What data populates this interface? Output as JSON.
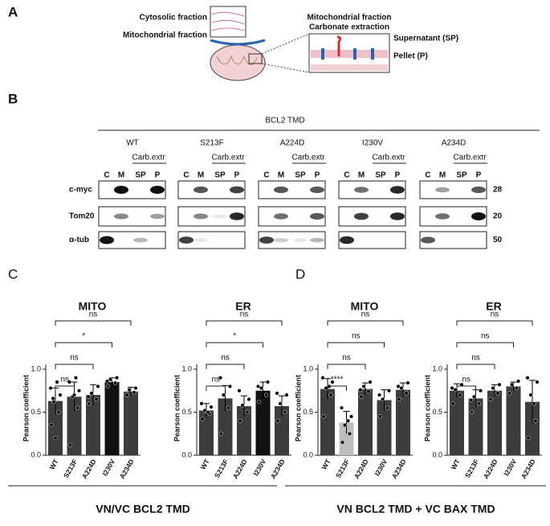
{
  "panel_a": {
    "label": "A",
    "cytosolic": "Cytosolic fraction",
    "mito": "Mitochondrial fraction",
    "box_title": [
      "Mitochondrial fraction",
      "Carbonate extraction"
    ],
    "supernatant": "Supernatant (SP)",
    "pellet": "Pellet (P)"
  },
  "panel_b": {
    "label": "B",
    "header": "BCL2 TMD",
    "groups": [
      "WT",
      "S213F",
      "A224D",
      "I230V",
      "A234D"
    ],
    "carb": "Carb.extr",
    "lanes": [
      "C",
      "M",
      "SP",
      "P"
    ],
    "rows": [
      "c-myc",
      "Tom20",
      "α-tub"
    ],
    "sizes": [
      28,
      20,
      50
    ]
  },
  "panel_c": {
    "label": "C",
    "caption": "VN/VC BCL2 TMD"
  },
  "panel_d": {
    "label": "D",
    "caption": "VN BCL2 TMD + VC BAX TMD"
  },
  "chart_data": [
    {
      "type": "bar",
      "title": "MITO",
      "ylabel": "Pearson coefficient",
      "categories": [
        "WT",
        "S213F",
        "A224D",
        "I230V",
        "A234D"
      ],
      "values": [
        0.63,
        0.68,
        0.7,
        0.85,
        0.74
      ],
      "errors": [
        0.15,
        0.17,
        0.12,
        0.05,
        0.05
      ],
      "bar_colors": [
        "#3d3d3d",
        "#3d3d3d",
        "#3d3d3d",
        "#111111",
        "#3d3d3d"
      ],
      "points": [
        [
          0.35,
          0.5,
          0.62,
          0.7,
          0.78,
          0.85,
          0.2,
          0.66
        ],
        [
          0.12,
          0.55,
          0.68,
          0.75,
          0.85,
          0.9,
          0.7
        ],
        [
          0.6,
          0.65,
          0.72,
          0.8,
          0.68
        ],
        [
          0.8,
          0.84,
          0.88,
          0.9,
          0.86
        ],
        [
          0.7,
          0.73,
          0.76,
          0.78
        ]
      ],
      "ylim": [
        0,
        1
      ],
      "yticks": [
        {
          "value": 0,
          "label": "0.0"
        },
        {
          "value": 0.5,
          "label": "0.5"
        },
        {
          "value": 1,
          "label": "1.0"
        }
      ],
      "significance": [
        "ns",
        "ns",
        "*",
        "ns"
      ]
    },
    {
      "type": "bar",
      "title": "ER",
      "ylabel": "Pearson coefficient",
      "categories": [
        "WT",
        "S213F",
        "A224D",
        "I230V",
        "A234D"
      ],
      "values": [
        0.52,
        0.66,
        0.57,
        0.75,
        0.57
      ],
      "errors": [
        0.08,
        0.15,
        0.12,
        0.1,
        0.12
      ],
      "bar_colors": [
        "#3d3d3d",
        "#3d3d3d",
        "#3d3d3d",
        "#111111",
        "#3d3d3d"
      ],
      "points": [
        [
          0.42,
          0.48,
          0.52,
          0.56,
          0.6,
          0.5
        ],
        [
          0.25,
          0.55,
          0.7,
          0.8,
          0.9
        ],
        [
          0.4,
          0.5,
          0.58,
          0.65,
          0.75
        ],
        [
          0.62,
          0.7,
          0.78,
          0.85,
          0.8
        ],
        [
          0.4,
          0.5,
          0.6,
          0.7,
          0.72
        ]
      ],
      "ylim": [
        0,
        1
      ],
      "yticks": [
        {
          "value": 0,
          "label": "0.0"
        },
        {
          "value": 0.5,
          "label": "0.5"
        },
        {
          "value": 1,
          "label": "1.0"
        }
      ],
      "significance": [
        "ns",
        "ns",
        "*",
        "ns"
      ]
    },
    {
      "type": "bar",
      "title": "MITO",
      "ylabel": "Pearson coefficient",
      "categories": [
        "WT",
        "S213F",
        "A224D",
        "I230V",
        "A234D"
      ],
      "values": [
        0.77,
        0.38,
        0.77,
        0.64,
        0.76
      ],
      "errors": [
        0.12,
        0.13,
        0.07,
        0.12,
        0.08
      ],
      "bar_colors": [
        "#3d3d3d",
        "#bdbdbd",
        "#3d3d3d",
        "#3d3d3d",
        "#3d3d3d"
      ],
      "points": [
        [
          0.45,
          0.7,
          0.78,
          0.85,
          0.9,
          0.8
        ],
        [
          0.15,
          0.25,
          0.35,
          0.45,
          0.55,
          0.4
        ],
        [
          0.68,
          0.74,
          0.8,
          0.85,
          0.76
        ],
        [
          0.45,
          0.55,
          0.65,
          0.75,
          0.7
        ],
        [
          0.65,
          0.72,
          0.78,
          0.84,
          0.8
        ]
      ],
      "ylim": [
        0,
        1
      ],
      "yticks": [
        {
          "value": 0,
          "label": "0.0"
        },
        {
          "value": 0.5,
          "label": "0.5"
        },
        {
          "value": 1,
          "label": "1.0"
        }
      ],
      "significance": [
        "****",
        "ns",
        "ns",
        "ns"
      ]
    },
    {
      "type": "bar",
      "title": "ER",
      "ylabel": "Pearson coefficient",
      "categories": [
        "WT",
        "S213F",
        "A224D",
        "I230V",
        "A234D"
      ],
      "values": [
        0.75,
        0.66,
        0.75,
        0.8,
        0.62
      ],
      "errors": [
        0.08,
        0.1,
        0.07,
        0.05,
        0.25
      ],
      "bar_colors": [
        "#3d3d3d",
        "#3d3d3d",
        "#3d3d3d",
        "#3d3d3d",
        "#3d3d3d"
      ],
      "points": [
        [
          0.6,
          0.7,
          0.76,
          0.82,
          0.78
        ],
        [
          0.5,
          0.6,
          0.68,
          0.75,
          0.64
        ],
        [
          0.65,
          0.72,
          0.78,
          0.82
        ],
        [
          0.72,
          0.78,
          0.82,
          0.86
        ],
        [
          0.2,
          0.4,
          0.7,
          0.85,
          0.9,
          0.6
        ]
      ],
      "ylim": [
        0,
        1
      ],
      "yticks": [
        {
          "value": 0,
          "label": "0.0"
        },
        {
          "value": 0.5,
          "label": "0.5"
        },
        {
          "value": 1,
          "label": "1.0"
        }
      ],
      "significance": [
        "ns",
        "ns",
        "ns",
        "ns"
      ]
    }
  ]
}
